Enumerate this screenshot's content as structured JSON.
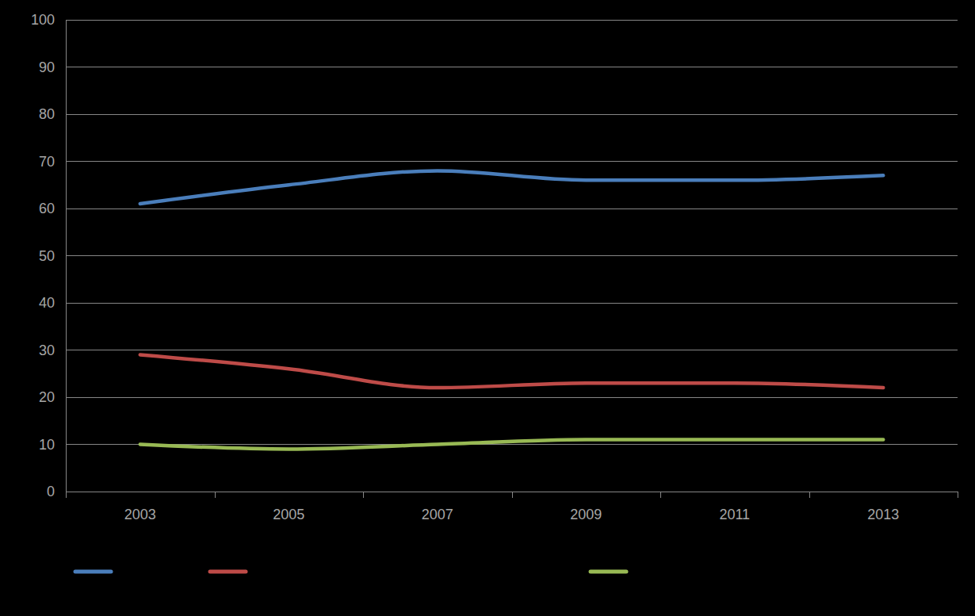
{
  "chart_data": {
    "type": "line",
    "categories": [
      "2003",
      "2005",
      "2007",
      "2009",
      "2011",
      "2013"
    ],
    "series": [
      {
        "color": "#4a7ebb",
        "values": [
          61,
          65,
          68,
          66,
          66,
          67
        ]
      },
      {
        "color": "#be4b48",
        "values": [
          29,
          26,
          22,
          23,
          23,
          22
        ]
      },
      {
        "color": "#98b954",
        "values": [
          10,
          9,
          10,
          11,
          11,
          11
        ]
      }
    ],
    "ylim": [
      0,
      100
    ],
    "yticks": [
      0,
      10,
      20,
      30,
      40,
      50,
      60,
      70,
      80,
      90,
      100
    ],
    "grid": true,
    "legend": "bottom"
  }
}
